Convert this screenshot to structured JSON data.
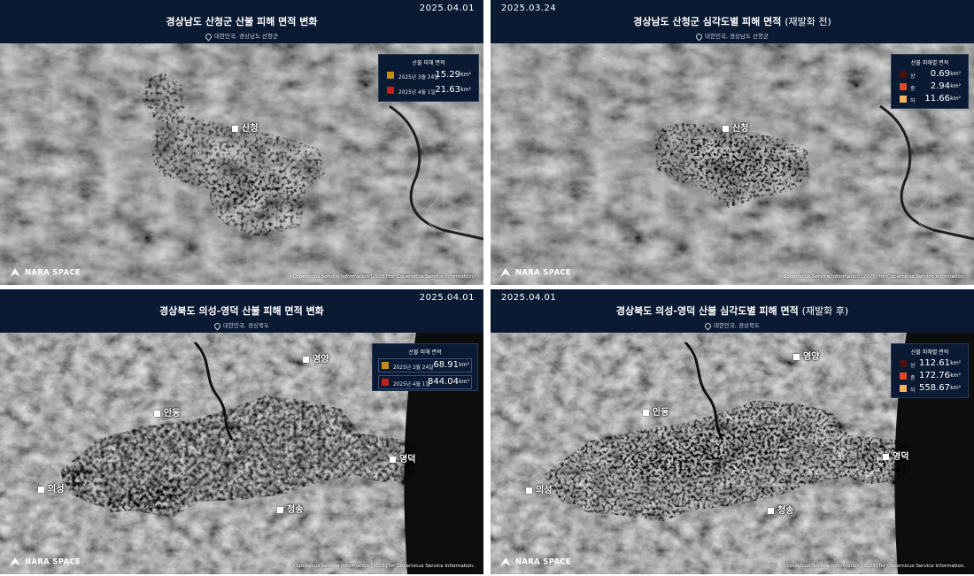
{
  "panels": [
    {
      "date": "2025.04.01",
      "title": "경상남도 산청군 산불 피해 면적 변화",
      "title_suffix": "",
      "location": "대한민국, 경상남도 산청군",
      "legend": {
        "title": "산불 피해 면적",
        "rows": [
          {
            "label": "2025년 3월 24일",
            "value": "15.29",
            "unit": "km²",
            "color": "#c88a12"
          },
          {
            "label": "2025년 4월 1일",
            "value": "21.63",
            "unit": "km²",
            "color": "#c61d1d"
          }
        ]
      },
      "places": [
        {
          "name": "산청"
        }
      ],
      "logo": "NARA SPACE",
      "credit": "Copernicus Service Information [2025] for Copernicus Service Information."
    },
    {
      "date": "2025.03.24",
      "title": "경상남도 산청군 심각도별 피해 면적",
      "title_suffix": "(재발화 전)",
      "location": "대한민국, 경상남도 산청군",
      "legend": {
        "title": "산불 피해별 면적",
        "rows": [
          {
            "label": "상",
            "value": "0.69",
            "unit": "km²",
            "color": "#4a1210"
          },
          {
            "label": "중",
            "value": "2.94",
            "unit": "km²",
            "color": "#e4452a"
          },
          {
            "label": "하",
            "value": "11.66",
            "unit": "km²",
            "color": "#f5b35a"
          }
        ]
      },
      "places": [
        {
          "name": "산청"
        }
      ],
      "logo": "NARA SPACE",
      "credit": "Copernicus Service Information [2025] for Copernicus Service Information."
    },
    {
      "date": "2025.04.01",
      "title": "경상북도 의성-영덕 산불 피해 면적 변화",
      "title_suffix": "",
      "location": "대한민국, 경상북도",
      "legend": {
        "title": "산불 피해 면적",
        "rows": [
          {
            "label": "2025년 3월 24일",
            "value": "68.91",
            "unit": "km²",
            "color": "#c88a12"
          },
          {
            "label": "2025년 4월 1일",
            "value": "844.04",
            "unit": "km²",
            "color": "#c61d1d"
          }
        ]
      },
      "places": [
        {
          "name": "영양"
        },
        {
          "name": "안동"
        },
        {
          "name": "영덕"
        },
        {
          "name": "의성"
        },
        {
          "name": "청송"
        }
      ],
      "logo": "NARA SPACE",
      "credit": "Copernicus Service Information [2025] for Copernicus Service Information."
    },
    {
      "date": "2025.04.01",
      "title": "경상북도 의성-영덕 산불 심각도별 피해 면적",
      "title_suffix": "(재발화 후)",
      "location": "대한민국, 경상북도",
      "legend": {
        "title": "산불 피해별 면적",
        "rows": [
          {
            "label": "상",
            "value": "112.61",
            "unit": "km²",
            "color": "#4a1210"
          },
          {
            "label": "중",
            "value": "172.76",
            "unit": "km²",
            "color": "#e4452a"
          },
          {
            "label": "하",
            "value": "558.67",
            "unit": "km²",
            "color": "#f5b35a"
          }
        ]
      },
      "places": [
        {
          "name": "영양"
        },
        {
          "name": "안동"
        },
        {
          "name": "영덕"
        },
        {
          "name": "의성"
        },
        {
          "name": "청송"
        }
      ],
      "logo": "NARA SPACE",
      "credit": "Copernicus Service Information [2025] for Copernicus Service Information."
    }
  ]
}
